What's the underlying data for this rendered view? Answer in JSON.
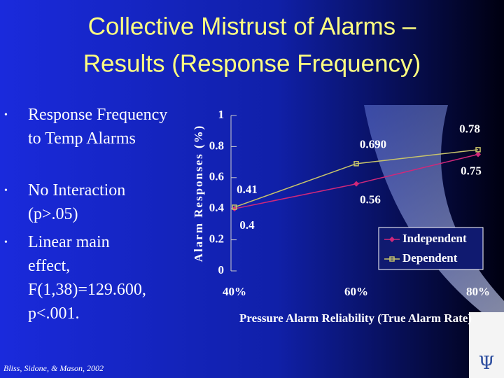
{
  "title": [
    "Collective Mistrust of Alarms –",
    "Results (Response Frequency)"
  ],
  "bullets": [
    "Response Frequency to Temp Alarms",
    "No Interaction (p>.05)",
    "Linear main effect, F(1,38)=129.600, p<.001."
  ],
  "citation": "Bliss, Sidone, & Mason, 2002",
  "chart_data": {
    "type": "line",
    "y_label": "Alarm Responses (%)",
    "x_label": "Pressure Alarm Reliability (True Alarm Rate)",
    "categories": [
      "40%",
      "60%",
      "80%"
    ],
    "ylim": [
      0,
      1
    ],
    "yticks": [
      0,
      0.2,
      0.4,
      0.6,
      0.8,
      1
    ],
    "legend": "lower right",
    "series": [
      {
        "name": "Independent",
        "color": "#d0287a",
        "marker": "diamond",
        "values": [
          0.4,
          0.56,
          0.75
        ],
        "value_labels": [
          "0.4",
          "0.56",
          "0.75"
        ]
      },
      {
        "name": "Dependent",
        "color": "#c8c46a",
        "marker": "square",
        "values": [
          0.41,
          0.69,
          0.78
        ],
        "value_labels": [
          "0.41",
          "0.690",
          "0.78"
        ]
      }
    ]
  }
}
